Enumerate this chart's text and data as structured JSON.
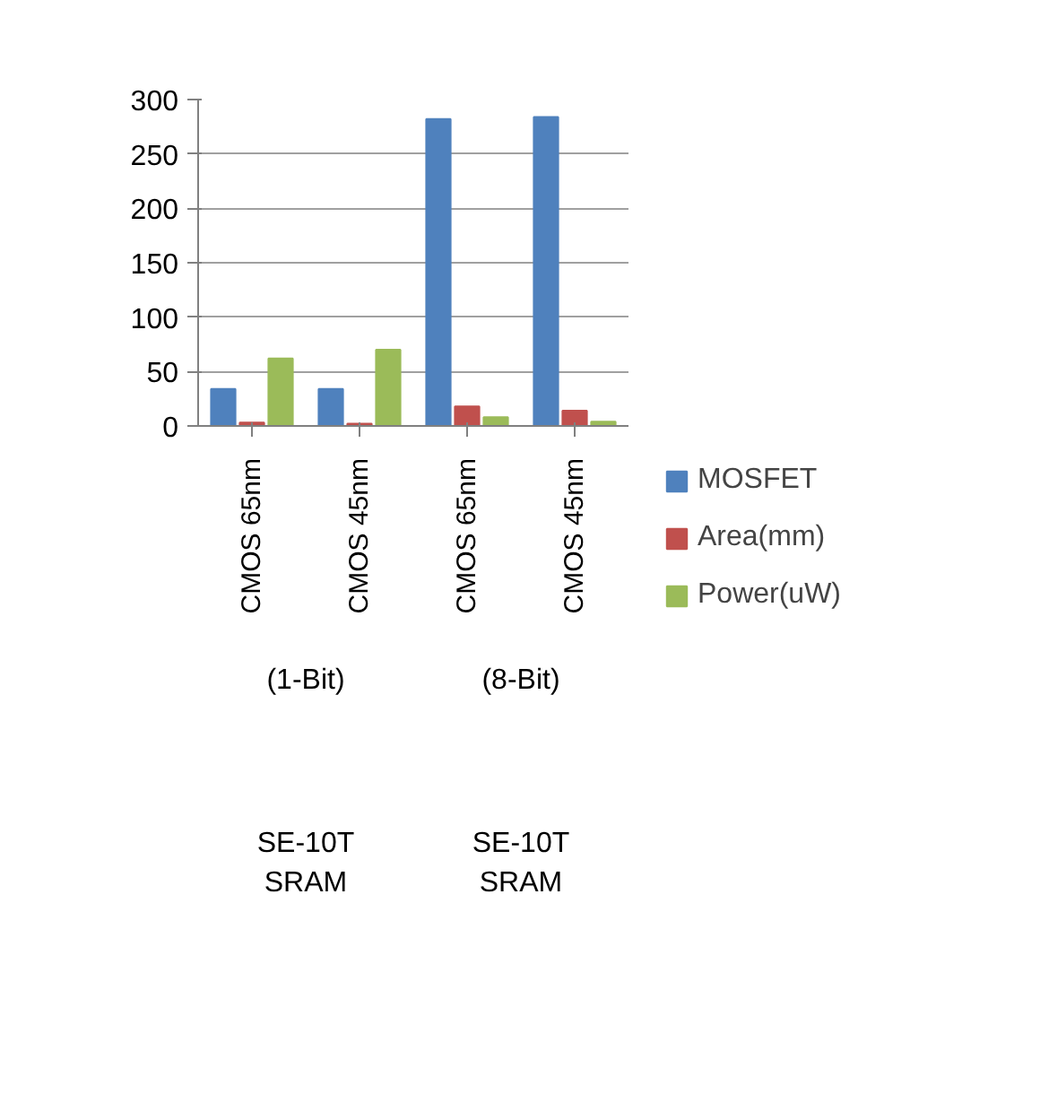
{
  "chart_data": {
    "type": "bar",
    "categories": [
      "CMOS 65nm",
      "CMOS 45nm",
      "CMOS 65nm",
      "CMOS 45nm"
    ],
    "series": [
      {
        "name": "MOSFET",
        "color": "#4f81bd",
        "values": [
          34,
          34,
          282,
          284
        ]
      },
      {
        "name": "Area(mm)",
        "color": "#c0504d",
        "values": [
          3,
          2,
          18,
          14
        ]
      },
      {
        "name": "Power(uW)",
        "color": "#9bbb59",
        "values": [
          62,
          70,
          8,
          4
        ]
      }
    ],
    "ylim": [
      0,
      300
    ],
    "yticks": [
      0,
      50,
      100,
      150,
      200,
      250,
      300
    ],
    "grid": "y",
    "legend": "right",
    "annotations": [
      "(1-Bit)",
      "(8-Bit)",
      "SE-10T\nSRAM",
      "SE-10T\nSRAM"
    ]
  }
}
